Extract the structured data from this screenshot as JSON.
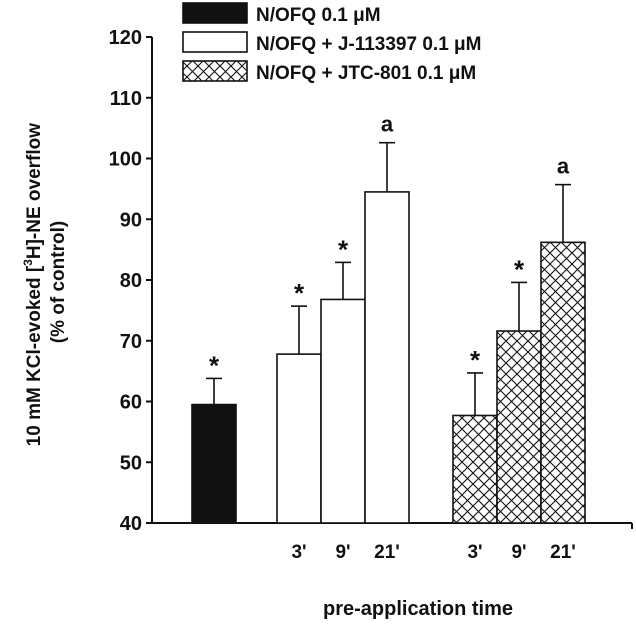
{
  "chart_data": {
    "type": "bar",
    "xlabel": "pre-application time",
    "ylabel_lines": [
      "10 mM KCl-evoked [",
      "3",
      "H]-NE overflow",
      "(% of control)"
    ],
    "ylim": [
      40,
      120
    ],
    "yticks": [
      "40",
      "50",
      "60",
      "70",
      "80",
      "90",
      "100",
      "110",
      "120"
    ],
    "legend_position": "top",
    "legend": [
      {
        "label": "N/OFQ 0.1 μM",
        "style": "solid-black"
      },
      {
        "label": "N/OFQ + J-113397 0.1 μM",
        "style": "white"
      },
      {
        "label": "N/OFQ + JTC-801 0.1 μM",
        "style": "crosshatch"
      }
    ],
    "series": [
      {
        "style": "solid-black",
        "bars": [
          {
            "category": "",
            "value": 59.5,
            "error": 4.3,
            "annotation": "*"
          }
        ]
      },
      {
        "style": "white",
        "bars": [
          {
            "category": "3'",
            "value": 67.8,
            "error": 7.9,
            "annotation": "*"
          },
          {
            "category": "9'",
            "value": 76.8,
            "error": 6.1,
            "annotation": "*"
          },
          {
            "category": "21'",
            "value": 94.5,
            "error": 8.1,
            "annotation": "a"
          }
        ]
      },
      {
        "style": "crosshatch",
        "bars": [
          {
            "category": "3'",
            "value": 57.7,
            "error": 7.0,
            "annotation": "*"
          },
          {
            "category": "9'",
            "value": 71.6,
            "error": 8.0,
            "annotation": "*"
          },
          {
            "category": "21'",
            "value": 86.2,
            "error": 9.5,
            "annotation": "a"
          }
        ]
      }
    ]
  }
}
